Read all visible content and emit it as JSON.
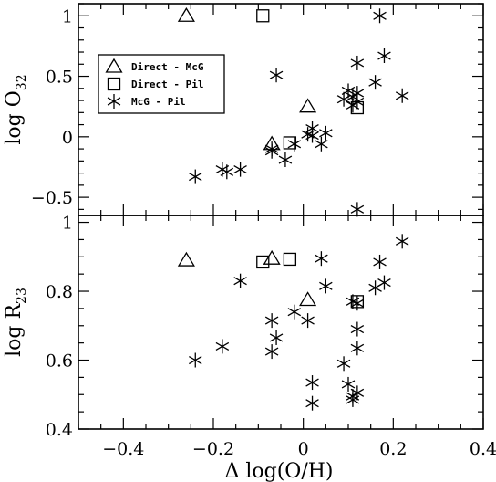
{
  "chart_data": [
    {
      "type": "scatter",
      "panel": "top",
      "ylabel": "log O",
      "ylabel_sub": "32",
      "xlim": [
        -0.5,
        0.4
      ],
      "ylim": [
        -0.65,
        1.1
      ],
      "xticks": [
        -0.4,
        -0.2,
        0,
        0.2,
        0.4
      ],
      "yticks": [
        -0.5,
        0,
        0.5,
        1
      ],
      "ytick_labels": [
        "−0.5",
        "0",
        "0.5",
        "1"
      ],
      "legend": {
        "placement": "upper-left",
        "entries": [
          {
            "marker": "triangle",
            "label": "Direct - McG"
          },
          {
            "marker": "square",
            "label": "Direct - Pil"
          },
          {
            "marker": "star",
            "label": "McG - Pil"
          }
        ]
      },
      "series": [
        {
          "marker": "triangle",
          "points": [
            [
              -0.26,
              1.0
            ],
            [
              -0.07,
              -0.06
            ],
            [
              0.01,
              0.25
            ]
          ]
        },
        {
          "marker": "square",
          "points": [
            [
              -0.09,
              1.0
            ],
            [
              -0.03,
              -0.05
            ],
            [
              0.12,
              0.24
            ]
          ]
        },
        {
          "marker": "star",
          "points": [
            [
              -0.24,
              -0.33
            ],
            [
              -0.18,
              -0.27
            ],
            [
              -0.17,
              -0.29
            ],
            [
              -0.14,
              -0.27
            ],
            [
              -0.07,
              -0.1
            ],
            [
              -0.07,
              -0.12
            ],
            [
              -0.06,
              0.51
            ],
            [
              -0.04,
              -0.19
            ],
            [
              -0.02,
              -0.06
            ],
            [
              0.01,
              0.02
            ],
            [
              0.02,
              0.07
            ],
            [
              0.02,
              0.01
            ],
            [
              0.04,
              -0.06
            ],
            [
              0.05,
              0.03
            ],
            [
              0.09,
              0.31
            ],
            [
              0.1,
              0.38
            ],
            [
              0.11,
              0.33
            ],
            [
              0.11,
              0.26
            ],
            [
              0.12,
              0.61
            ],
            [
              0.12,
              0.36
            ],
            [
              0.12,
              0.29
            ],
            [
              0.12,
              -0.6
            ],
            [
              0.16,
              0.45
            ],
            [
              0.17,
              1.0
            ],
            [
              0.18,
              0.67
            ],
            [
              0.22,
              0.34
            ]
          ]
        }
      ]
    },
    {
      "type": "scatter",
      "panel": "bottom",
      "xlabel": "Δ log(O/H)",
      "ylabel": "log R",
      "ylabel_sub": "23",
      "xlim": [
        -0.5,
        0.4
      ],
      "ylim": [
        0.4,
        1.02
      ],
      "xticks": [
        -0.4,
        -0.2,
        0,
        0.2,
        0.4
      ],
      "xtick_labels": [
        "−0.4",
        "−0.2",
        "0",
        "0.2",
        "0.4"
      ],
      "yticks": [
        0.4,
        0.6,
        0.8,
        1
      ],
      "ytick_labels": [
        "0.4",
        "0.6",
        "0.8",
        "1"
      ],
      "series": [
        {
          "marker": "triangle",
          "points": [
            [
              -0.26,
              0.89
            ],
            [
              -0.07,
              0.895
            ],
            [
              0.01,
              0.775
            ]
          ]
        },
        {
          "marker": "square",
          "points": [
            [
              -0.09,
              0.885
            ],
            [
              -0.03,
              0.893
            ],
            [
              0.12,
              0.77
            ]
          ]
        },
        {
          "marker": "star",
          "points": [
            [
              -0.24,
              0.6
            ],
            [
              -0.18,
              0.64
            ],
            [
              -0.14,
              0.83
            ],
            [
              -0.07,
              0.715
            ],
            [
              -0.07,
              0.625
            ],
            [
              -0.06,
              0.665
            ],
            [
              -0.02,
              0.74
            ],
            [
              0.01,
              0.715
            ],
            [
              0.02,
              0.535
            ],
            [
              0.02,
              0.475
            ],
            [
              0.04,
              0.895
            ],
            [
              0.05,
              0.815
            ],
            [
              0.09,
              0.59
            ],
            [
              0.1,
              0.53
            ],
            [
              0.11,
              0.77
            ],
            [
              0.11,
              0.495
            ],
            [
              0.11,
              0.485
            ],
            [
              0.12,
              0.69
            ],
            [
              0.12,
              0.635
            ],
            [
              0.12,
              0.505
            ],
            [
              0.12,
              0.765
            ],
            [
              0.16,
              0.81
            ],
            [
              0.17,
              0.885
            ],
            [
              0.18,
              0.825
            ],
            [
              0.22,
              0.945
            ]
          ]
        }
      ]
    }
  ]
}
